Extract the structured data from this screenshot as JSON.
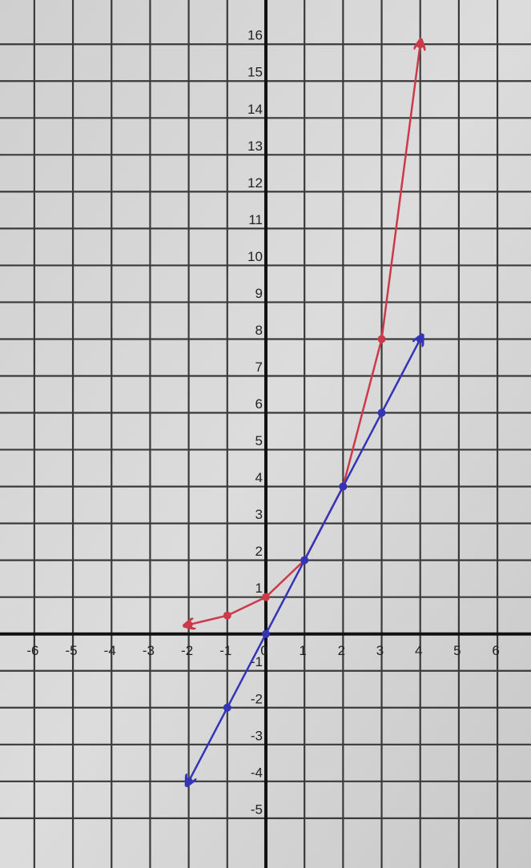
{
  "chart_data": {
    "type": "line",
    "x": [
      -2,
      -1,
      0,
      1,
      2,
      3,
      4
    ],
    "series": [
      {
        "color": "#cc3a4a",
        "values": [
          0.25,
          0.5,
          1,
          2,
          4,
          8,
          16
        ]
      },
      {
        "color": "#3434b8",
        "values": [
          -4,
          -2,
          0,
          2,
          4,
          6,
          8
        ]
      }
    ],
    "xlim": [
      -6.89,
      6.87
    ],
    "ylim": [
      -6.35,
      17.2
    ],
    "xticks": [
      -6,
      -5,
      -4,
      -3,
      -2,
      -1,
      0,
      1,
      2,
      3,
      4,
      5,
      6
    ],
    "yticks": [
      -5,
      -4,
      -3,
      -2,
      -1,
      1,
      2,
      3,
      4,
      5,
      6,
      7,
      8,
      9,
      10,
      11,
      12,
      13,
      14,
      15,
      16
    ],
    "grid": true
  }
}
